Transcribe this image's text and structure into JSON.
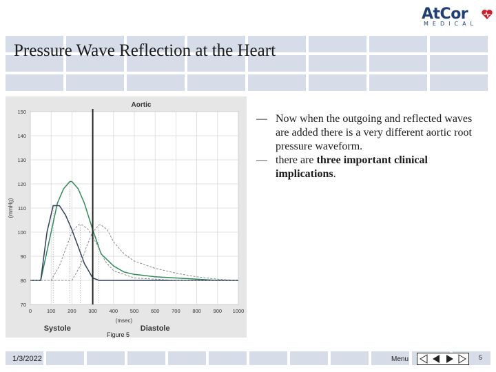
{
  "slide": {
    "title": "Pressure Wave Reflection at the Heart",
    "logo": {
      "name": "AtCor",
      "sub": "MEDICAL"
    },
    "bullets": [
      {
        "text": "Now when the outgoing and reflected waves are added there is a very different aortic root pressure waveform.",
        "bold": ""
      },
      {
        "text": "there are ",
        "bold": "three important clinical implications",
        "after": "."
      }
    ],
    "bullet_marker": "—",
    "figure_label": "Figure 5",
    "footer": {
      "date": "1/3/2022",
      "menu": "Menu",
      "page": "5"
    }
  },
  "chart_data": {
    "type": "line",
    "title": "Aortic",
    "xlabel": "(msec)",
    "ylabel": "(mmHg)",
    "x_ticks": [
      0,
      100,
      200,
      300,
      400,
      500,
      600,
      700,
      800,
      900,
      1000
    ],
    "y_ticks": [
      70,
      80,
      90,
      100,
      110,
      120,
      130,
      140,
      150
    ],
    "xlim": [
      0,
      1000
    ],
    "ylim": [
      70,
      150
    ],
    "phase_labels": [
      "Systole",
      "Diastole"
    ],
    "divider_x": 300,
    "series": [
      {
        "color": "#2e8b57",
        "style": "solid",
        "x": [
          0,
          50,
          100,
          130,
          160,
          190,
          200,
          230,
          260,
          300,
          340,
          400,
          450,
          500,
          600,
          700,
          800,
          900,
          1000
        ],
        "y": [
          80,
          80,
          100,
          112,
          118,
          121,
          121,
          118,
          112,
          101,
          91,
          86,
          83.5,
          82.5,
          81.5,
          81,
          80.5,
          80,
          80
        ]
      },
      {
        "color": "#2f3f5f",
        "style": "solid",
        "x": [
          0,
          50,
          80,
          110,
          140,
          170,
          200,
          230,
          260,
          300,
          330,
          400,
          1000
        ],
        "y": [
          80,
          80,
          100,
          111,
          111,
          107,
          101,
          94,
          87,
          81,
          80,
          80,
          80
        ]
      },
      {
        "color": "#888888",
        "style": "dashed",
        "x": [
          0,
          100,
          140,
          170,
          200,
          230,
          250,
          280,
          320,
          360,
          400,
          500,
          700,
          1000
        ],
        "y": [
          80,
          80,
          86,
          93,
          100,
          103,
          103,
          101,
          95,
          88,
          84,
          81,
          80,
          80
        ]
      },
      {
        "color": "#888888",
        "style": "dashed",
        "x": [
          0,
          200,
          240,
          270,
          300,
          330,
          340,
          370,
          400,
          450,
          500,
          600,
          700,
          800,
          900,
          1000
        ],
        "y": [
          80,
          80,
          86,
          94,
          100,
          103,
          103,
          101,
          96,
          91,
          88,
          85,
          83,
          81.5,
          80.5,
          80
        ]
      }
    ]
  }
}
